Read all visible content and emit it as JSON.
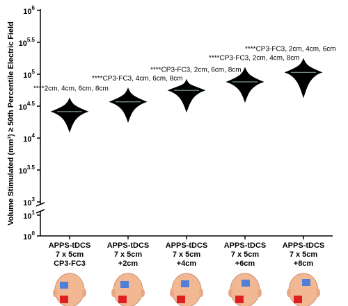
{
  "chart_data": {
    "type": "violin",
    "y_label": "Volume Stimulated (mm³) ≥ 50th Percentile Electric Field",
    "categories": [
      [
        "APPS-tDCS",
        "7 x 5cm",
        "CP3-FC3"
      ],
      [
        "APPS-tDCS",
        "7 x 5cm",
        "+2cm"
      ],
      [
        "APPS-tDCS",
        "7 x 5cm",
        "+4cm"
      ],
      [
        "APPS-tDCS",
        "7 x 5cm",
        "+6cm"
      ],
      [
        "APPS-tDCS",
        "7 x 5cm",
        "+8cm"
      ]
    ],
    "annotations": [
      "****2cm, 4cm, 6cm, 8cm",
      "****CP3-FC3, 4cm, 6cm, 8cm",
      "****CP3-FC3, 2cm, 6cm, 8cm",
      "****CP3-FC3, 2cm, 4cm, 8cm",
      "****CP3-FC3, 2cm, 4cm, 6cm"
    ],
    "values": [
      26000,
      37000,
      56000,
      76000,
      107000
    ],
    "min": [
      12600,
      18000,
      26000,
      37000,
      44000
    ],
    "max": [
      42000,
      60000,
      82000,
      126000,
      174000
    ],
    "color": "#000000",
    "log_scale": true,
    "ylim": [
      1000,
      1000000
    ],
    "yticks": [
      {
        "value": 1000,
        "label": "10",
        "power": "3"
      },
      {
        "value": 3162.28,
        "label": "10",
        "power": "3.5"
      },
      {
        "value": 10000,
        "label": "10",
        "power": "4"
      },
      {
        "value": 31622.8,
        "label": "10",
        "power": "4.5"
      },
      {
        "value": 100000,
        "label": "10",
        "power": "5"
      },
      {
        "value": 316228,
        "label": "10",
        "power": "5.5"
      },
      {
        "value": 1000000,
        "label": "10",
        "power": "6"
      }
    ],
    "lower_ylim": [
      1,
      10
    ],
    "lower_yticks": [
      {
        "value": 1,
        "label": "10",
        "power": "0"
      },
      {
        "value": 10,
        "label": "10",
        "power": "1"
      }
    ]
  }
}
